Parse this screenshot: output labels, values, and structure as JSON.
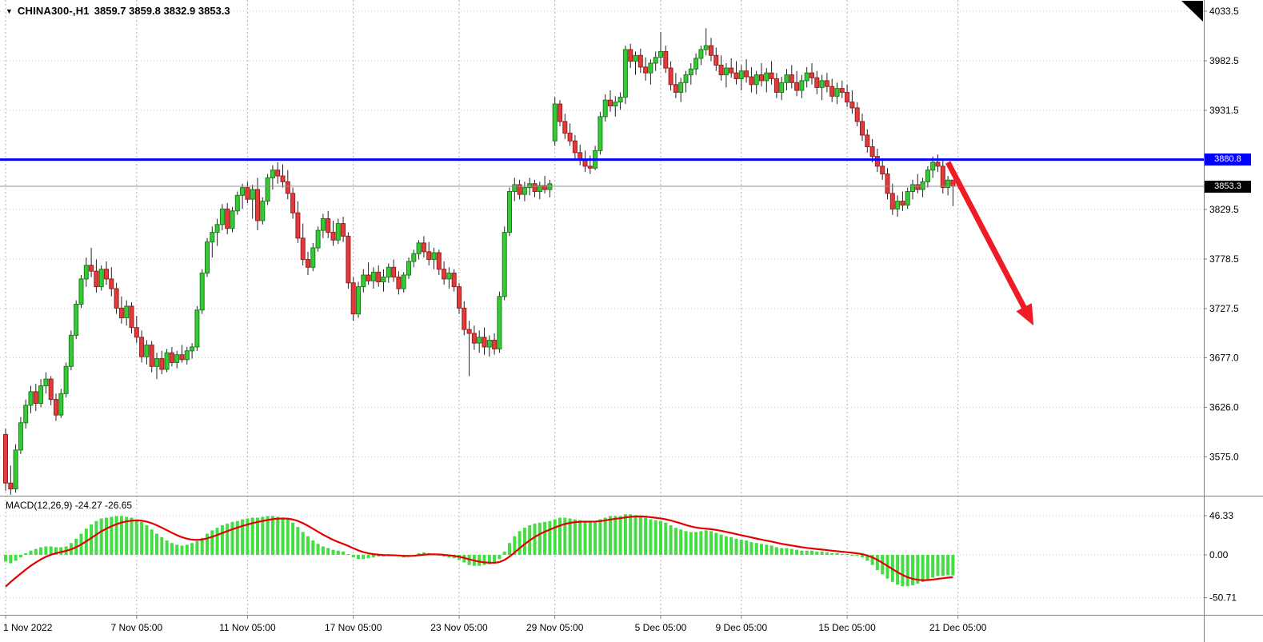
{
  "header": {
    "icon": "▼",
    "symbol_period": "CHINA300-,H1",
    "ohlc": "3859.7 3859.8 3832.9 3853.3"
  },
  "macd_label": "MACD(12,26,9) -24.27 -26.65",
  "price_axis": {
    "ticks": [
      {
        "label": "4033.5",
        "price": 4033.5
      },
      {
        "label": "3982.5",
        "price": 3982.5
      },
      {
        "label": "3931.5",
        "price": 3931.5
      },
      {
        "label": "3829.5",
        "price": 3829.5
      },
      {
        "label": "3778.5",
        "price": 3778.5
      },
      {
        "label": "3727.5",
        "price": 3727.5
      },
      {
        "label": "3677.0",
        "price": 3677.0
      },
      {
        "label": "3626.0",
        "price": 3626.0
      },
      {
        "label": "3575.0",
        "price": 3575.0
      }
    ],
    "badges": [
      {
        "label": "3880.8",
        "price": 3880.8,
        "bg": "#0000fe",
        "fg": "#ffffff"
      },
      {
        "label": "3853.3",
        "price": 3853.3,
        "bg": "#000000",
        "fg": "#ffffff"
      }
    ]
  },
  "macd_axis": {
    "ticks": [
      {
        "label": "46.33",
        "value": 46.33
      },
      {
        "label": "0.00",
        "value": 0
      },
      {
        "label": "-50.71",
        "value": -50.71
      }
    ]
  },
  "time_axis": {
    "ticks": [
      {
        "label": "1 Nov 2022",
        "index": 0
      },
      {
        "label": "7 Nov 05:00",
        "index": 26
      },
      {
        "label": "11 Nov 05:00",
        "index": 48
      },
      {
        "label": "17 Nov 05:00",
        "index": 69
      },
      {
        "label": "23 Nov 05:00",
        "index": 90
      },
      {
        "label": "29 Nov 05:00",
        "index": 109
      },
      {
        "label": "5 Dec 05:00",
        "index": 130
      },
      {
        "label": "9 Dec 05:00",
        "index": 146
      },
      {
        "label": "15 Dec 05:00",
        "index": 167
      },
      {
        "label": "21 Dec 05:00",
        "index": 189
      }
    ]
  },
  "colors": {
    "bull": "#33cc33",
    "bull_border": "#1f7a1f",
    "bear": "#e23b3b",
    "bear_border": "#991d1d",
    "wick": "#222222",
    "macd_bar": "#44dd44",
    "signal": "#e60000",
    "hline": "#0000fe",
    "current_line": "#909090",
    "grid": "#c8c8c8",
    "grid_vertical": "#aeaeae",
    "arrow": "#ee1c25",
    "axis_text": "#000000",
    "separator": "#808080"
  },
  "chart_data": {
    "type": "candlestick",
    "symbol": "CHINA300-",
    "timeframe": "H1",
    "title": "CHINA300-,H1",
    "ohlc_current": {
      "open": 3859.7,
      "high": 3859.8,
      "low": 3832.9,
      "close": 3853.3
    },
    "visible_price_labels": [
      4033.5,
      3982.5,
      3931.5,
      3880.8,
      3853.3,
      3829.5,
      3778.5,
      3727.5,
      3677.0,
      3626.0,
      3575.0
    ],
    "candles": [
      [
        3598,
        3604,
        3540,
        3548
      ],
      [
        3548,
        3566,
        3536,
        3542
      ],
      [
        3542,
        3588,
        3538,
        3582
      ],
      [
        3582,
        3616,
        3578,
        3610
      ],
      [
        3610,
        3634,
        3604,
        3628
      ],
      [
        3628,
        3648,
        3620,
        3642
      ],
      [
        3642,
        3650,
        3622,
        3630
      ],
      [
        3630,
        3655,
        3626,
        3648
      ],
      [
        3648,
        3662,
        3640,
        3655
      ],
      [
        3655,
        3658,
        3628,
        3634
      ],
      [
        3634,
        3640,
        3612,
        3618
      ],
      [
        3618,
        3645,
        3615,
        3640
      ],
      [
        3640,
        3672,
        3636,
        3668
      ],
      [
        3668,
        3705,
        3664,
        3700
      ],
      [
        3700,
        3736,
        3696,
        3732
      ],
      [
        3732,
        3762,
        3728,
        3758
      ],
      [
        3758,
        3780,
        3750,
        3772
      ],
      [
        3772,
        3790,
        3760,
        3766
      ],
      [
        3766,
        3778,
        3744,
        3750
      ],
      [
        3750,
        3772,
        3746,
        3768
      ],
      [
        3768,
        3776,
        3752,
        3758
      ],
      [
        3758,
        3770,
        3740,
        3748
      ],
      [
        3748,
        3754,
        3722,
        3728
      ],
      [
        3728,
        3740,
        3712,
        3718
      ],
      [
        3718,
        3736,
        3710,
        3730
      ],
      [
        3730,
        3734,
        3702,
        3708
      ],
      [
        3708,
        3720,
        3692,
        3698
      ],
      [
        3698,
        3705,
        3672,
        3678
      ],
      [
        3678,
        3695,
        3670,
        3690
      ],
      [
        3690,
        3694,
        3662,
        3668
      ],
      [
        3668,
        3682,
        3655,
        3676
      ],
      [
        3676,
        3684,
        3660,
        3665
      ],
      [
        3665,
        3686,
        3662,
        3682
      ],
      [
        3682,
        3688,
        3668,
        3672
      ],
      [
        3672,
        3684,
        3666,
        3680
      ],
      [
        3680,
        3690,
        3672,
        3675
      ],
      [
        3675,
        3688,
        3670,
        3684
      ],
      [
        3684,
        3692,
        3676,
        3688
      ],
      [
        3688,
        3730,
        3684,
        3726
      ],
      [
        3726,
        3768,
        3722,
        3764
      ],
      [
        3764,
        3800,
        3760,
        3796
      ],
      [
        3796,
        3812,
        3780,
        3806
      ],
      [
        3806,
        3820,
        3792,
        3814
      ],
      [
        3814,
        3835,
        3808,
        3830
      ],
      [
        3830,
        3836,
        3804,
        3810
      ],
      [
        3810,
        3832,
        3806,
        3828
      ],
      [
        3828,
        3848,
        3824,
        3844
      ],
      [
        3844,
        3856,
        3830,
        3852
      ],
      [
        3852,
        3858,
        3836,
        3840
      ],
      [
        3840,
        3855,
        3820,
        3850
      ],
      [
        3850,
        3862,
        3808,
        3818
      ],
      [
        3818,
        3842,
        3814,
        3838
      ],
      [
        3838,
        3866,
        3834,
        3862
      ],
      [
        3862,
        3875,
        3850,
        3870
      ],
      [
        3870,
        3878,
        3856,
        3864
      ],
      [
        3864,
        3876,
        3852,
        3858
      ],
      [
        3858,
        3870,
        3840,
        3846
      ],
      [
        3846,
        3852,
        3820,
        3826
      ],
      [
        3826,
        3838,
        3795,
        3800
      ],
      [
        3800,
        3815,
        3772,
        3778
      ],
      [
        3778,
        3786,
        3762,
        3770
      ],
      [
        3770,
        3795,
        3766,
        3790
      ],
      [
        3790,
        3812,
        3786,
        3808
      ],
      [
        3808,
        3825,
        3800,
        3820
      ],
      [
        3820,
        3828,
        3800,
        3806
      ],
      [
        3806,
        3818,
        3792,
        3798
      ],
      [
        3798,
        3820,
        3794,
        3815
      ],
      [
        3815,
        3822,
        3796,
        3802
      ],
      [
        3802,
        3806,
        3748,
        3754
      ],
      [
        3754,
        3760,
        3715,
        3722
      ],
      [
        3722,
        3755,
        3718,
        3750
      ],
      [
        3750,
        3768,
        3744,
        3762
      ],
      [
        3762,
        3775,
        3752,
        3756
      ],
      [
        3756,
        3770,
        3748,
        3765
      ],
      [
        3765,
        3772,
        3750,
        3755
      ],
      [
        3755,
        3768,
        3745,
        3760
      ],
      [
        3760,
        3774,
        3754,
        3770
      ],
      [
        3770,
        3778,
        3755,
        3760
      ],
      [
        3760,
        3766,
        3742,
        3748
      ],
      [
        3748,
        3765,
        3744,
        3762
      ],
      [
        3762,
        3780,
        3758,
        3776
      ],
      [
        3776,
        3788,
        3770,
        3784
      ],
      [
        3784,
        3798,
        3778,
        3795
      ],
      [
        3795,
        3802,
        3780,
        3786
      ],
      [
        3786,
        3796,
        3772,
        3778
      ],
      [
        3778,
        3790,
        3768,
        3785
      ],
      [
        3785,
        3788,
        3762,
        3768
      ],
      [
        3768,
        3776,
        3752,
        3758
      ],
      [
        3758,
        3770,
        3748,
        3764
      ],
      [
        3764,
        3768,
        3745,
        3750
      ],
      [
        3750,
        3754,
        3722,
        3728
      ],
      [
        3728,
        3735,
        3700,
        3706
      ],
      [
        3706,
        3715,
        3658,
        3702
      ],
      [
        3702,
        3710,
        3685,
        3692
      ],
      [
        3692,
        3705,
        3682,
        3698
      ],
      [
        3698,
        3708,
        3680,
        3688
      ],
      [
        3688,
        3700,
        3678,
        3695
      ],
      [
        3695,
        3702,
        3680,
        3686
      ],
      [
        3686,
        3745,
        3682,
        3740
      ],
      [
        3740,
        3812,
        3736,
        3806
      ],
      [
        3806,
        3852,
        3802,
        3848
      ],
      [
        3848,
        3862,
        3838,
        3855
      ],
      [
        3855,
        3860,
        3840,
        3845
      ],
      [
        3845,
        3858,
        3838,
        3852
      ],
      [
        3852,
        3862,
        3844,
        3856
      ],
      [
        3856,
        3860,
        3842,
        3848
      ],
      [
        3848,
        3858,
        3840,
        3854
      ],
      [
        3854,
        3864,
        3846,
        3850
      ],
      [
        3850,
        3860,
        3842,
        3856
      ],
      [
        3900,
        3945,
        3895,
        3938
      ],
      [
        3938,
        3942,
        3915,
        3920
      ],
      [
        3920,
        3928,
        3902,
        3908
      ],
      [
        3908,
        3918,
        3895,
        3900
      ],
      [
        3900,
        3906,
        3882,
        3888
      ],
      [
        3888,
        3896,
        3875,
        3880
      ],
      [
        3880,
        3890,
        3868,
        3874
      ],
      [
        3874,
        3885,
        3866,
        3872
      ],
      [
        3872,
        3895,
        3870,
        3890
      ],
      [
        3890,
        3930,
        3886,
        3925
      ],
      [
        3925,
        3948,
        3920,
        3942
      ],
      [
        3942,
        3952,
        3930,
        3936
      ],
      [
        3936,
        3946,
        3925,
        3940
      ],
      [
        3940,
        3950,
        3932,
        3945
      ],
      [
        3945,
        3998,
        3938,
        3994
      ],
      [
        3994,
        4000,
        3975,
        3982
      ],
      [
        3982,
        3992,
        3968,
        3988
      ],
      [
        3988,
        3995,
        3970,
        3976
      ],
      [
        3976,
        3986,
        3962,
        3970
      ],
      [
        3970,
        3984,
        3958,
        3980
      ],
      [
        3980,
        3992,
        3972,
        3986
      ],
      [
        3986,
        4012,
        3978,
        3992
      ],
      [
        3992,
        3998,
        3970,
        3975
      ],
      [
        3975,
        3982,
        3952,
        3958
      ],
      [
        3958,
        3970,
        3944,
        3950
      ],
      [
        3950,
        3965,
        3940,
        3960
      ],
      [
        3960,
        3972,
        3950,
        3968
      ],
      [
        3968,
        3980,
        3958,
        3974
      ],
      [
        3974,
        3990,
        3968,
        3985
      ],
      [
        3985,
        3998,
        3978,
        3994
      ],
      [
        3994,
        4016,
        3988,
        3998
      ],
      [
        3998,
        4006,
        3982,
        3988
      ],
      [
        3988,
        3996,
        3972,
        3978
      ],
      [
        3978,
        3988,
        3962,
        3968
      ],
      [
        3968,
        3980,
        3955,
        3975
      ],
      [
        3975,
        3985,
        3965,
        3970
      ],
      [
        3970,
        3982,
        3958,
        3964
      ],
      [
        3964,
        3978,
        3952,
        3972
      ],
      [
        3972,
        3984,
        3960,
        3966
      ],
      [
        3966,
        3976,
        3950,
        3958
      ],
      [
        3958,
        3972,
        3948,
        3968
      ],
      [
        3968,
        3980,
        3956,
        3962
      ],
      [
        3962,
        3975,
        3950,
        3970
      ],
      [
        3970,
        3982,
        3958,
        3964
      ],
      [
        3964,
        3970,
        3944,
        3950
      ],
      [
        3950,
        3966,
        3942,
        3960
      ],
      [
        3960,
        3974,
        3952,
        3968
      ],
      [
        3968,
        3978,
        3954,
        3960
      ],
      [
        3960,
        3972,
        3946,
        3952
      ],
      [
        3952,
        3968,
        3944,
        3962
      ],
      [
        3962,
        3976,
        3955,
        3970
      ],
      [
        3970,
        3980,
        3958,
        3965
      ],
      [
        3965,
        3972,
        3948,
        3955
      ],
      [
        3955,
        3968,
        3942,
        3962
      ],
      [
        3962,
        3970,
        3950,
        3956
      ],
      [
        3956,
        3964,
        3940,
        3946
      ],
      [
        3946,
        3960,
        3938,
        3954
      ],
      [
        3954,
        3962,
        3944,
        3950
      ],
      [
        3950,
        3958,
        3935,
        3940
      ],
      [
        3940,
        3952,
        3928,
        3934
      ],
      [
        3934,
        3940,
        3915,
        3920
      ],
      [
        3920,
        3928,
        3900,
        3906
      ],
      [
        3906,
        3912,
        3888,
        3894
      ],
      [
        3894,
        3902,
        3878,
        3884
      ],
      [
        3884,
        3892,
        3868,
        3874
      ],
      [
        3874,
        3882,
        3860,
        3866
      ],
      [
        3866,
        3872,
        3840,
        3846
      ],
      [
        3846,
        3856,
        3824,
        3830
      ],
      [
        3830,
        3844,
        3822,
        3838
      ],
      [
        3838,
        3848,
        3828,
        3834
      ],
      [
        3834,
        3852,
        3830,
        3848
      ],
      [
        3848,
        3860,
        3840,
        3855
      ],
      [
        3855,
        3866,
        3846,
        3850
      ],
      [
        3850,
        3862,
        3842,
        3858
      ],
      [
        3858,
        3874,
        3852,
        3870
      ],
      [
        3870,
        3884,
        3862,
        3878
      ],
      [
        3878,
        3886,
        3868,
        3874
      ],
      [
        3874,
        3880,
        3846,
        3852
      ],
      [
        3852,
        3864,
        3844,
        3859.7
      ],
      [
        3859.7,
        3859.8,
        3832.9,
        3853.3
      ]
    ],
    "indicator": {
      "name": "MACD",
      "params": [
        12,
        26,
        9
      ],
      "macd_value": -24.27,
      "signal_value": -26.65,
      "axis_range": [
        -50.71,
        46.33
      ],
      "signal_seed": -45,
      "signal_alpha": 0.2,
      "histogram": [
        -8,
        -10,
        -7,
        -3,
        2,
        5,
        7,
        9,
        10,
        10,
        9,
        9,
        10,
        14,
        19,
        25,
        31,
        36,
        40,
        43,
        44,
        45,
        46,
        46,
        45,
        44,
        42,
        39,
        35,
        30,
        25,
        21,
        17,
        14,
        12,
        11,
        12,
        14,
        16,
        20,
        25,
        29,
        32,
        35,
        37,
        39,
        40,
        42,
        43,
        44,
        44,
        45,
        46,
        46,
        45,
        44,
        42,
        38,
        33,
        27,
        22,
        17,
        13,
        10,
        8,
        6,
        5,
        4,
        1,
        -3,
        -5,
        -5,
        -4,
        -3,
        -2,
        -2,
        -1,
        -1,
        -2,
        -3,
        -2,
        0,
        2,
        3,
        2,
        1,
        0,
        -2,
        -3,
        -4,
        -6,
        -9,
        -12,
        -13,
        -13,
        -12,
        -11,
        -10,
        -5,
        4,
        14,
        22,
        28,
        32,
        35,
        37,
        38,
        39,
        40,
        42,
        44,
        44,
        43,
        42,
        41,
        40,
        39,
        40,
        42,
        44,
        46,
        46,
        46,
        48,
        48,
        47,
        46,
        44,
        42,
        41,
        40,
        38,
        35,
        32,
        30,
        28,
        27,
        27,
        28,
        29,
        28,
        26,
        24,
        22,
        21,
        19,
        18,
        17,
        15,
        14,
        13,
        12,
        11,
        9,
        8,
        8,
        7,
        6,
        5,
        5,
        5,
        4,
        4,
        3,
        2,
        2,
        1,
        1,
        0,
        -1,
        -3,
        -7,
        -12,
        -18,
        -23,
        -28,
        -32,
        -35,
        -37,
        -37,
        -36,
        -34,
        -32,
        -29,
        -27,
        -25,
        -25,
        -24,
        -24.27
      ]
    },
    "overlays": {
      "resistance_line": 3880.8,
      "current_price_line": 3853.3,
      "trend_arrow": {
        "direction": "down",
        "from": {
          "index": 187,
          "price": 3878
        },
        "to": {
          "index": 204,
          "price": 3710
        }
      }
    }
  }
}
